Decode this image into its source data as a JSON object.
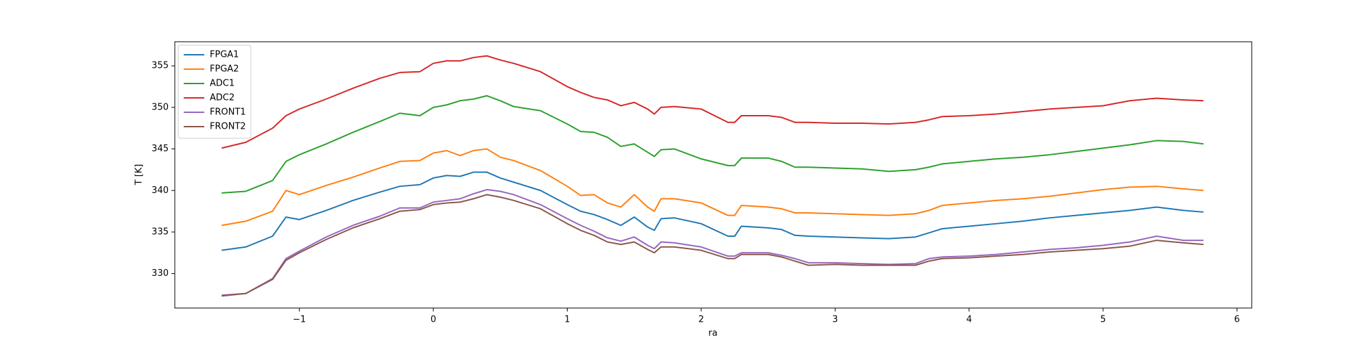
{
  "chart_data": {
    "type": "line",
    "xlabel": "ra",
    "ylabel": "T [K]",
    "legend": "upper left",
    "x": [
      -1.58,
      -1.4,
      -1.2,
      -1.1,
      -1.0,
      -0.8,
      -0.6,
      -0.4,
      -0.25,
      -0.1,
      0.0,
      0.1,
      0.2,
      0.3,
      0.4,
      0.5,
      0.6,
      0.8,
      1.0,
      1.1,
      1.2,
      1.3,
      1.4,
      1.5,
      1.6,
      1.65,
      1.7,
      1.8,
      2.0,
      2.2,
      2.25,
      2.3,
      2.5,
      2.6,
      2.7,
      2.8,
      3.0,
      3.2,
      3.4,
      3.6,
      3.7,
      3.8,
      4.0,
      4.2,
      4.4,
      4.6,
      4.8,
      5.0,
      5.2,
      5.4,
      5.6,
      5.75
    ],
    "series": [
      {
        "name": "FPGA1",
        "color": "#1f77b4",
        "values": [
          332.8,
          333.2,
          334.5,
          336.8,
          336.5,
          337.6,
          338.8,
          339.8,
          340.5,
          340.7,
          341.5,
          341.8,
          341.7,
          342.2,
          342.2,
          341.5,
          341,
          340,
          338.3,
          337.5,
          337.1,
          336.5,
          335.8,
          336.8,
          335.6,
          335.2,
          336.6,
          336.7,
          336,
          334.5,
          334.5,
          335.7,
          335.5,
          335.3,
          334.6,
          334.5,
          334.4,
          334.3,
          334.2,
          334.4,
          334.9,
          335.4,
          335.7,
          336,
          336.3,
          336.7,
          337,
          337.3,
          337.6,
          338,
          337.6,
          337.4
        ]
      },
      {
        "name": "FPGA2",
        "color": "#ff7f0e",
        "values": [
          335.8,
          336.3,
          337.5,
          340,
          339.5,
          340.6,
          341.6,
          342.7,
          343.5,
          343.6,
          344.5,
          344.8,
          344.2,
          344.8,
          345,
          344,
          343.6,
          342.4,
          340.5,
          339.4,
          339.5,
          338.5,
          338,
          339.5,
          338,
          337.5,
          339,
          339,
          338.5,
          337,
          337,
          338.2,
          338,
          337.8,
          337.3,
          337.3,
          337.2,
          337.1,
          337,
          337.2,
          337.6,
          338.2,
          338.5,
          338.8,
          339,
          339.3,
          339.7,
          340.1,
          340.4,
          340.5,
          340.2,
          340
        ]
      },
      {
        "name": "ADC1",
        "color": "#2ca02c",
        "values": [
          339.7,
          339.9,
          341.2,
          343.5,
          344.3,
          345.6,
          347,
          348.3,
          349.3,
          349,
          350,
          350.3,
          350.8,
          351,
          351.4,
          350.8,
          350.1,
          349.6,
          348,
          347.1,
          347,
          346.4,
          345.3,
          345.6,
          344.6,
          344.1,
          344.9,
          345,
          343.8,
          343,
          343,
          343.9,
          343.9,
          343.5,
          342.8,
          342.8,
          342.7,
          342.6,
          342.3,
          342.5,
          342.8,
          343.2,
          343.5,
          343.8,
          344,
          344.3,
          344.7,
          345.1,
          345.5,
          346,
          345.9,
          345.6
        ]
      },
      {
        "name": "ADC2",
        "color": "#d62728",
        "values": [
          345.1,
          345.8,
          347.5,
          349,
          349.8,
          351,
          352.3,
          353.5,
          354.2,
          354.3,
          355.3,
          355.6,
          355.6,
          356,
          356.2,
          355.7,
          355.3,
          354.3,
          352.5,
          351.8,
          351.2,
          350.9,
          350.2,
          350.6,
          349.8,
          349.2,
          350,
          350.1,
          349.8,
          348.2,
          348.2,
          349,
          349,
          348.8,
          348.2,
          348.2,
          348.1,
          348.1,
          348,
          348.2,
          348.5,
          348.9,
          349,
          349.2,
          349.5,
          349.8,
          350,
          350.2,
          350.8,
          351.1,
          350.9,
          350.8
        ]
      },
      {
        "name": "FRONT1",
        "color": "#9467bd",
        "values": [
          327.4,
          327.6,
          329.4,
          331.8,
          332.7,
          334.4,
          335.8,
          336.9,
          337.9,
          337.9,
          338.6,
          338.8,
          339,
          339.6,
          340.1,
          339.9,
          339.5,
          338.3,
          336.6,
          335.8,
          335.1,
          334.3,
          333.9,
          334.4,
          333.4,
          333,
          333.8,
          333.7,
          333.2,
          332.1,
          332.1,
          332.5,
          332.5,
          332.2,
          331.8,
          331.3,
          331.3,
          331.2,
          331.1,
          331.2,
          331.8,
          332,
          332.1,
          332.3,
          332.6,
          332.9,
          333.1,
          333.4,
          333.8,
          334.5,
          334,
          334
        ]
      },
      {
        "name": "FRONT2",
        "color": "#8c564b",
        "values": [
          327.3,
          327.6,
          329.3,
          331.6,
          332.5,
          334.1,
          335.5,
          336.6,
          337.5,
          337.7,
          338.3,
          338.5,
          338.6,
          339,
          339.5,
          339.2,
          338.8,
          337.8,
          336,
          335.2,
          334.6,
          333.8,
          333.5,
          333.8,
          332.9,
          332.5,
          333.2,
          333.2,
          332.8,
          331.8,
          331.8,
          332.3,
          332.3,
          332,
          331.5,
          331,
          331.1,
          331,
          331,
          331,
          331.5,
          331.8,
          331.9,
          332.1,
          332.3,
          332.6,
          332.8,
          333,
          333.3,
          334,
          333.7,
          333.5
        ]
      }
    ],
    "xlim": [
      -1.93,
      6.11
    ],
    "ylim": [
      325.85,
      357.9
    ],
    "xticks": [
      {
        "value": -1,
        "label": "−1"
      },
      0,
      1,
      2,
      3,
      4,
      5,
      6
    ],
    "yticks": [
      330,
      335,
      340,
      345,
      350,
      355
    ]
  }
}
